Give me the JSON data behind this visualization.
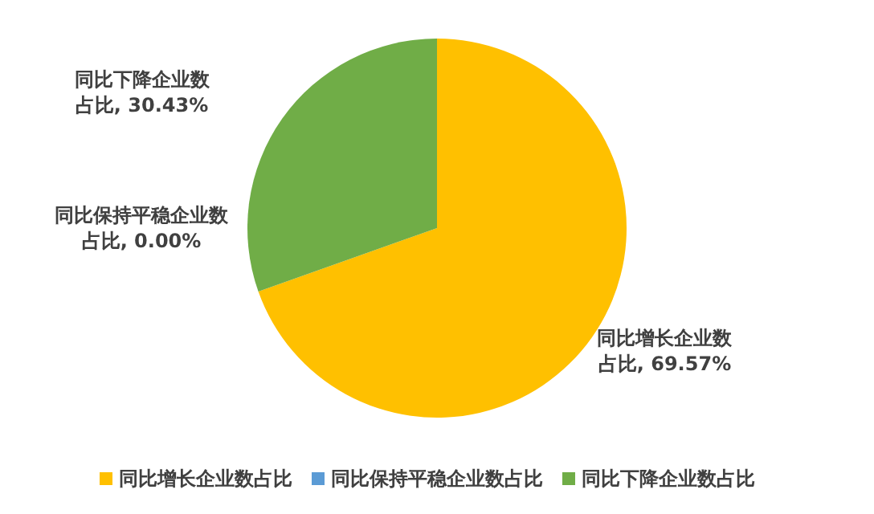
{
  "chart_data": {
    "type": "pie",
    "categories": [
      "同比增长企业数占比",
      "同比保持平稳企业数占比",
      "同比下降企业数占比"
    ],
    "values": [
      69.57,
      0,
      30.43
    ],
    "colors": [
      "#ffc000",
      "#5b9bd5",
      "#70ad47"
    ],
    "value_labels": [
      "同比增长企业数占比, 69.57%",
      "同比保持平稳企业数占比, 0.00%",
      "同比下降企业数占比, 30.43%"
    ],
    "legend": "bottom"
  }
}
